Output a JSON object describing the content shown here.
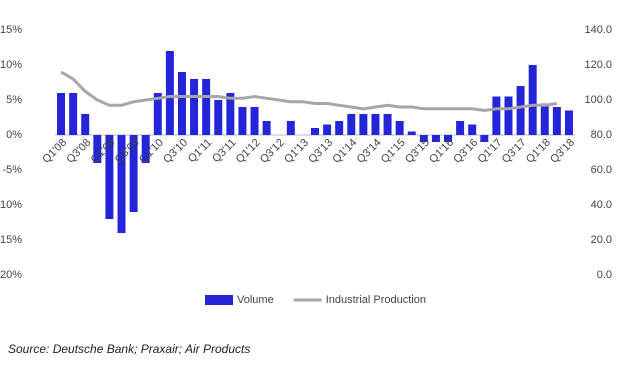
{
  "chart_data": {
    "type": "bar",
    "categories": [
      "Q1'08",
      null,
      "Q3'08",
      null,
      "Q1'09",
      null,
      "Q3'09",
      null,
      "Q1'10",
      null,
      "Q3'10",
      null,
      "Q1'11",
      null,
      "Q3'11",
      null,
      "Q1'12",
      null,
      "Q3'12",
      null,
      "Q1'13",
      null,
      "Q3'13",
      null,
      "Q1'14",
      null,
      "Q3'14",
      null,
      "Q1'15",
      null,
      "Q3'15",
      null,
      "Q1'16",
      null,
      "Q3'16",
      null,
      "Q1'17",
      null,
      "Q3'17",
      null,
      "Q1'18",
      null,
      "Q3'18"
    ],
    "series": [
      {
        "name": "Volume",
        "type": "bar",
        "color": "#2424d8",
        "values": [
          6,
          6,
          3,
          -4,
          -12,
          -14,
          -11,
          -4,
          6,
          12,
          9,
          8,
          8,
          5,
          6,
          4,
          4,
          2,
          0,
          2,
          0,
          1,
          1.5,
          2,
          3,
          3,
          3,
          3,
          2,
          0.5,
          -1,
          -1,
          -1,
          2,
          1.5,
          -1,
          5.5,
          5.5,
          7,
          10,
          4.5,
          4,
          3.5
        ]
      },
      {
        "name": "Industrial Production",
        "type": "line",
        "axis": "y2",
        "color": "#a6a6a6",
        "values": [
          116,
          112,
          105,
          100,
          97,
          97,
          99,
          100,
          101,
          102,
          102,
          102,
          102,
          102,
          101,
          101,
          102,
          101,
          100,
          99,
          99,
          98,
          98,
          97,
          96,
          95,
          96,
          97,
          96,
          96,
          95,
          95,
          95,
          95,
          95,
          94,
          95,
          95,
          96,
          97,
          97,
          98,
          null
        ]
      }
    ],
    "ylim": [
      -20,
      15
    ],
    "yticks": [
      {
        "value": -20,
        "label": "-20%"
      },
      {
        "value": -15,
        "label": "-15%"
      },
      {
        "value": -10,
        "label": "-10%"
      },
      {
        "value": -5,
        "label": "-5%"
      },
      {
        "value": 0,
        "label": "0%"
      },
      {
        "value": 5,
        "label": "5%"
      },
      {
        "value": 10,
        "label": "10%"
      },
      {
        "value": 15,
        "label": "15%"
      }
    ],
    "y2lim": [
      0,
      140
    ],
    "y2ticks": [
      {
        "value": 0,
        "label": "0.0"
      },
      {
        "value": 20,
        "label": "20.0"
      },
      {
        "value": 40,
        "label": "40.0"
      },
      {
        "value": 60,
        "label": "60.0"
      },
      {
        "value": 80,
        "label": "80.0"
      },
      {
        "value": 100,
        "label": "100.0"
      },
      {
        "value": 120,
        "label": "120.0"
      },
      {
        "value": 140,
        "label": "140.0"
      }
    ],
    "grid": false,
    "legend": "bottom",
    "source": "Source: Deutsche Bank; Praxair; Air Products"
  }
}
